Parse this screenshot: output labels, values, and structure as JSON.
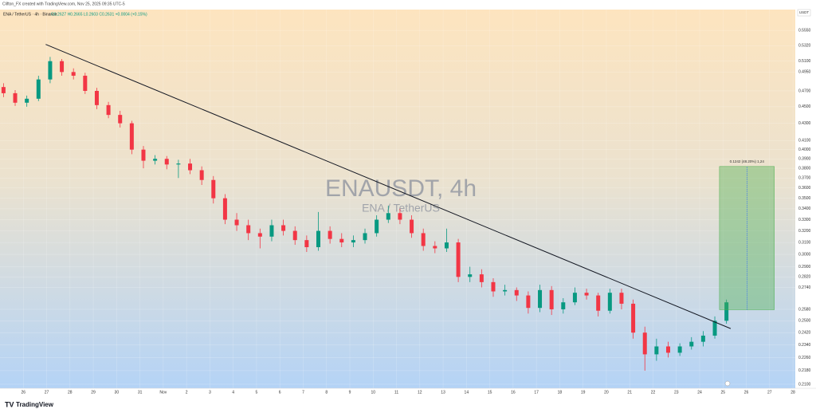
{
  "header": {
    "credit": "Clifton_FX created with TradingView.com, Nov 25, 2025 09:35 UTC-5",
    "symbol": "ENA / TetherUS · 4h · Binance",
    "ohlc": "O0.2627 H0.2665 L0.2603 C0.2631 +0.0004 (+0.15%)"
  },
  "watermark": {
    "title": "ENAUSDT, 4h",
    "subtitle": "ENA / TetherUS"
  },
  "footer": {
    "brand": "TradingView"
  },
  "chart_data": {
    "type": "candlestick",
    "currency": "USDT",
    "x": [
      -0.85,
      -0.35,
      0.15,
      0.65,
      1.15,
      1.65,
      2.15,
      2.65,
      3.15,
      3.65,
      4.15,
      4.65,
      5.15,
      5.65,
      6.15,
      6.65,
      7.15,
      7.65,
      8.15,
      8.65,
      9.15,
      9.65,
      10.15,
      10.65,
      11.15,
      11.65,
      12.15,
      12.65,
      13.15,
      13.65,
      14.15,
      14.65,
      15.15,
      15.65,
      16.15,
      16.65,
      17.15,
      17.65,
      18.15,
      18.65,
      19.15,
      19.65,
      20.15,
      20.65,
      21.15,
      21.65,
      22.15,
      22.65,
      23.15,
      23.65,
      24.15,
      24.65,
      25.15,
      25.65,
      26.15,
      26.65,
      27.15,
      27.65,
      28.15,
      28.65,
      29.15,
      29.65,
      30.15
    ],
    "open": [
      0.475,
      0.467,
      0.455,
      0.46,
      0.485,
      0.51,
      0.495,
      0.49,
      0.47,
      0.452,
      0.44,
      0.43,
      0.4,
      0.388,
      0.39,
      0.384,
      0.385,
      0.378,
      0.368,
      0.35,
      0.33,
      0.325,
      0.318,
      0.315,
      0.325,
      0.32,
      0.312,
      0.306,
      0.32,
      0.313,
      0.31,
      0.312,
      0.318,
      0.33,
      0.336,
      0.33,
      0.318,
      0.307,
      0.305,
      0.31,
      0.282,
      0.284,
      0.278,
      0.271,
      0.272,
      0.268,
      0.259,
      0.272,
      0.258,
      0.263,
      0.27,
      0.268,
      0.257,
      0.27,
      0.262,
      0.242,
      0.228,
      0.233,
      0.229,
      0.233,
      0.236,
      0.24,
      0.25
    ],
    "high": [
      0.48,
      0.471,
      0.464,
      0.49,
      0.516,
      0.513,
      0.5,
      0.494,
      0.474,
      0.456,
      0.445,
      0.433,
      0.404,
      0.394,
      0.393,
      0.389,
      0.39,
      0.382,
      0.372,
      0.354,
      0.336,
      0.33,
      0.322,
      0.33,
      0.33,
      0.324,
      0.316,
      0.337,
      0.324,
      0.318,
      0.316,
      0.322,
      0.334,
      0.343,
      0.34,
      0.334,
      0.322,
      0.311,
      0.322,
      0.313,
      0.29,
      0.288,
      0.281,
      0.276,
      0.274,
      0.271,
      0.276,
      0.275,
      0.266,
      0.274,
      0.273,
      0.27,
      0.273,
      0.273,
      0.265,
      0.246,
      0.238,
      0.236,
      0.235,
      0.239,
      0.243,
      0.253,
      0.265
    ],
    "low": [
      0.462,
      0.451,
      0.45,
      0.457,
      0.48,
      0.49,
      0.485,
      0.466,
      0.447,
      0.436,
      0.425,
      0.395,
      0.38,
      0.384,
      0.379,
      0.37,
      0.374,
      0.363,
      0.345,
      0.326,
      0.32,
      0.312,
      0.305,
      0.311,
      0.316,
      0.308,
      0.302,
      0.303,
      0.309,
      0.306,
      0.306,
      0.309,
      0.315,
      0.327,
      0.326,
      0.314,
      0.303,
      0.301,
      0.302,
      0.278,
      0.278,
      0.274,
      0.267,
      0.268,
      0.264,
      0.255,
      0.256,
      0.254,
      0.255,
      0.261,
      0.265,
      0.253,
      0.255,
      0.258,
      0.238,
      0.218,
      0.224,
      0.226,
      0.227,
      0.231,
      0.233,
      0.238,
      0.248
    ],
    "close": [
      0.467,
      0.455,
      0.46,
      0.485,
      0.51,
      0.495,
      0.49,
      0.47,
      0.452,
      0.44,
      0.43,
      0.4,
      0.388,
      0.39,
      0.384,
      0.385,
      0.378,
      0.368,
      0.35,
      0.33,
      0.325,
      0.318,
      0.315,
      0.325,
      0.32,
      0.312,
      0.306,
      0.32,
      0.313,
      0.31,
      0.312,
      0.318,
      0.33,
      0.336,
      0.33,
      0.318,
      0.307,
      0.305,
      0.31,
      0.282,
      0.284,
      0.278,
      0.271,
      0.272,
      0.268,
      0.259,
      0.272,
      0.258,
      0.263,
      0.27,
      0.268,
      0.257,
      0.27,
      0.262,
      0.242,
      0.228,
      0.233,
      0.229,
      0.233,
      0.236,
      0.24,
      0.25,
      0.263
    ],
    "up_color": "#089981",
    "down_color": "#f23645",
    "xlim": [
      -1.0,
      33.1
    ],
    "xticks": [
      {
        "value": 0,
        "label": "26"
      },
      {
        "value": 1,
        "label": "27"
      },
      {
        "value": 2,
        "label": "28"
      },
      {
        "value": 3,
        "label": "29"
      },
      {
        "value": 4,
        "label": "30"
      },
      {
        "value": 5,
        "label": "31"
      },
      {
        "value": 6,
        "label": "Nov"
      },
      {
        "value": 7,
        "label": "2"
      },
      {
        "value": 8,
        "label": "3"
      },
      {
        "value": 9,
        "label": "4"
      },
      {
        "value": 10,
        "label": "5"
      },
      {
        "value": 11,
        "label": "6"
      },
      {
        "value": 12,
        "label": "7"
      },
      {
        "value": 13,
        "label": "8"
      },
      {
        "value": 14,
        "label": "9"
      },
      {
        "value": 15,
        "label": "10"
      },
      {
        "value": 16,
        "label": "11"
      },
      {
        "value": 17,
        "label": "12"
      },
      {
        "value": 18,
        "label": "13"
      },
      {
        "value": 19,
        "label": "14"
      },
      {
        "value": 20,
        "label": "15"
      },
      {
        "value": 21,
        "label": "16"
      },
      {
        "value": 22,
        "label": "17"
      },
      {
        "value": 23,
        "label": "18"
      },
      {
        "value": 24,
        "label": "19"
      },
      {
        "value": 25,
        "label": "20"
      },
      {
        "value": 26,
        "label": "21"
      },
      {
        "value": 27,
        "label": "22"
      },
      {
        "value": 28,
        "label": "23"
      },
      {
        "value": 29,
        "label": "24"
      },
      {
        "value": 30,
        "label": "25"
      },
      {
        "value": 31,
        "label": "26"
      },
      {
        "value": 32,
        "label": "27"
      },
      {
        "value": 33,
        "label": "28"
      }
    ],
    "ylim": [
      0.2077,
      0.5876
    ],
    "log_scale": true,
    "grid": true,
    "yticks": [
      {
        "value": 0.555,
        "label": "0.5550"
      },
      {
        "value": 0.532,
        "label": "0.5320"
      },
      {
        "value": 0.51,
        "label": "0.5100"
      },
      {
        "value": 0.495,
        "label": "0.4950"
      },
      {
        "value": 0.47,
        "label": "0.4700"
      },
      {
        "value": 0.45,
        "label": "0.4500"
      },
      {
        "value": 0.43,
        "label": "0.4300"
      },
      {
        "value": 0.41,
        "label": "0.4100"
      },
      {
        "value": 0.4,
        "label": "0.4000"
      },
      {
        "value": 0.39,
        "label": "0.3900"
      },
      {
        "value": 0.38,
        "label": "0.3800"
      },
      {
        "value": 0.37,
        "label": "0.3700"
      },
      {
        "value": 0.36,
        "label": "0.3600"
      },
      {
        "value": 0.35,
        "label": "0.3500"
      },
      {
        "value": 0.34,
        "label": "0.3400"
      },
      {
        "value": 0.33,
        "label": "0.3300"
      },
      {
        "value": 0.32,
        "label": "0.3200"
      },
      {
        "value": 0.31,
        "label": "0.3100"
      },
      {
        "value": 0.3,
        "label": "0.3000"
      },
      {
        "value": 0.29,
        "label": "0.2900"
      },
      {
        "value": 0.282,
        "label": "0.2820"
      },
      {
        "value": 0.274,
        "label": "0.2740"
      },
      {
        "value": 0.258,
        "label": "0.2580"
      },
      {
        "value": 0.25,
        "label": "0.2500"
      },
      {
        "value": 0.242,
        "label": "0.2420"
      },
      {
        "value": 0.234,
        "label": "0.2340"
      },
      {
        "value": 0.226,
        "label": "0.2260"
      },
      {
        "value": 0.218,
        "label": "0.2180"
      },
      {
        "value": 0.21,
        "label": "0.2100"
      }
    ],
    "trendline": {
      "x": [
        0.96,
        30.33
      ],
      "y": [
        0.534,
        0.2447
      ],
      "color": "#131722"
    },
    "measure": {
      "x": [
        29.85,
        32.2
      ],
      "from": 0.2577,
      "to": 0.3819,
      "label": "0.1242 (48.20%) 1,24",
      "color": "#4caf50"
    }
  }
}
